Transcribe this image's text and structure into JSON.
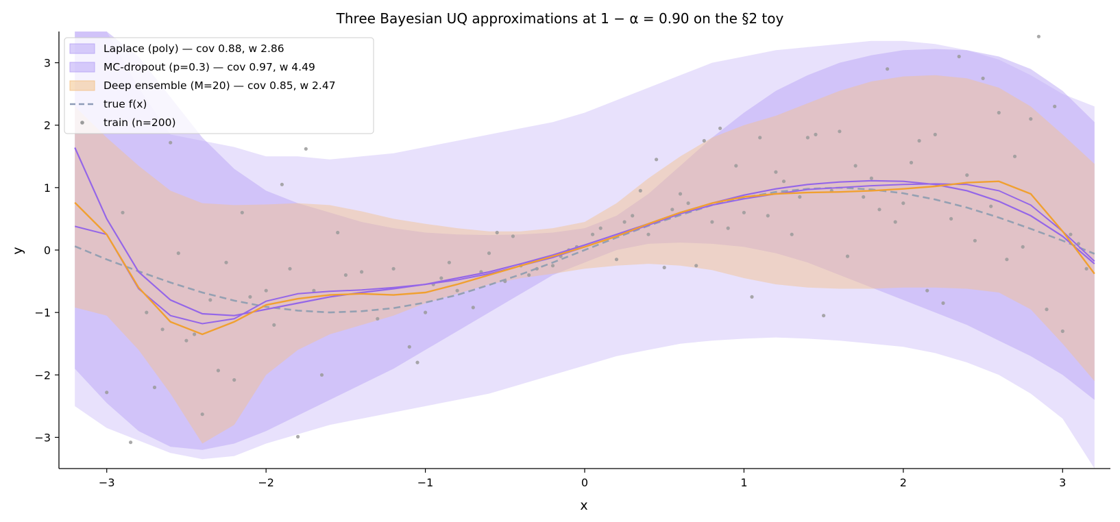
{
  "chart_data": {
    "type": "line",
    "title": "Three Bayesian UQ approximations at 1 − α = 0.90 on the §2 toy",
    "xlabel": "x",
    "ylabel": "y",
    "xlim": [
      -3.3,
      3.3
    ],
    "ylim": [
      -3.5,
      3.5
    ],
    "xticks": [
      -3,
      -2,
      -1,
      0,
      1,
      2,
      3
    ],
    "yticks": [
      -3,
      -2,
      -1,
      0,
      1,
      2,
      3
    ],
    "xtick_labels": [
      "−3",
      "−2",
      "−1",
      "0",
      "1",
      "2",
      "3"
    ],
    "ytick_labels": [
      "−3",
      "−2",
      "−1",
      "0",
      "1",
      "2",
      "3"
    ],
    "grid": false,
    "legend_position": "top-left",
    "legend": [
      {
        "label": "Laplace (poly) — cov 0.88, w 2.86",
        "kind": "band",
        "color": "#b9a5f5"
      },
      {
        "label": "MC-dropout (p=0.3) — cov 0.97, w 4.49",
        "kind": "band",
        "color": "#b9a5f5"
      },
      {
        "label": "Deep ensemble (M=20) — cov 0.85, w 2.47",
        "kind": "band",
        "color": "#f3c28a"
      },
      {
        "label": "true f(x)",
        "kind": "dashed-line",
        "color": "#8e9cb8"
      },
      {
        "label": "train (n=200)",
        "kind": "marker",
        "color": "#9a9a9a"
      }
    ],
    "x": [
      -3.2,
      -3.0,
      -2.8,
      -2.6,
      -2.4,
      -2.2,
      -2.0,
      -1.8,
      -1.6,
      -1.4,
      -1.2,
      -1.0,
      -0.8,
      -0.6,
      -0.4,
      -0.2,
      0.0,
      0.2,
      0.4,
      0.6,
      0.8,
      1.0,
      1.2,
      1.4,
      1.6,
      1.8,
      2.0,
      2.2,
      2.4,
      2.6,
      2.8,
      3.0,
      3.2
    ],
    "series": [
      {
        "name": "true f(x)",
        "color": "#94a0b2",
        "style": "dashed",
        "values": [
          0.06,
          -0.15,
          -0.34,
          -0.52,
          -0.68,
          -0.81,
          -0.91,
          -0.97,
          -1.0,
          -0.98,
          -0.93,
          -0.84,
          -0.72,
          -0.56,
          -0.39,
          -0.2,
          0.0,
          0.2,
          0.39,
          0.56,
          0.72,
          0.84,
          0.93,
          0.98,
          1.0,
          0.97,
          0.91,
          0.81,
          0.68,
          0.52,
          0.34,
          0.15,
          -0.06
        ]
      },
      {
        "name": "Laplace (poly) mean",
        "color": "#9466e8",
        "style": "solid",
        "values": [
          1.64,
          0.5,
          -0.35,
          -0.8,
          -1.02,
          -1.05,
          -0.95,
          -0.85,
          -0.75,
          -0.68,
          -0.62,
          -0.55,
          -0.45,
          -0.35,
          -0.22,
          -0.08,
          0.08,
          0.25,
          0.42,
          0.6,
          0.75,
          0.88,
          0.98,
          1.05,
          1.09,
          1.11,
          1.1,
          1.05,
          0.95,
          0.78,
          0.55,
          0.22,
          -0.22
        ]
      },
      {
        "name": "Laplace (poly) lower",
        "color": "#b9a5f5",
        "style": "band-edge",
        "values": [
          -1.9,
          -2.45,
          -2.9,
          -3.15,
          -3.2,
          -3.1,
          -2.9,
          -2.65,
          -2.4,
          -2.15,
          -1.9,
          -1.6,
          -1.3,
          -1.0,
          -0.7,
          -0.4,
          -0.2,
          0.0,
          0.1,
          0.12,
          0.1,
          0.05,
          -0.05,
          -0.2,
          -0.4,
          -0.6,
          -0.8,
          -1.0,
          -1.2,
          -1.45,
          -1.7,
          -2.0,
          -2.4
        ]
      },
      {
        "name": "Laplace (poly) upper",
        "color": "#b9a5f5",
        "style": "band-edge",
        "values": [
          3.5,
          3.5,
          3.1,
          2.45,
          1.8,
          1.3,
          0.95,
          0.75,
          0.6,
          0.45,
          0.35,
          0.28,
          0.25,
          0.24,
          0.25,
          0.28,
          0.35,
          0.55,
          0.9,
          1.35,
          1.8,
          2.2,
          2.55,
          2.8,
          3.0,
          3.12,
          3.2,
          3.22,
          3.2,
          3.1,
          2.9,
          2.55,
          2.05
        ]
      },
      {
        "name": "MC-dropout mean",
        "color": "#9466e8",
        "style": "solid",
        "values": [
          0.38,
          0.25,
          -0.62,
          -1.05,
          -1.18,
          -1.1,
          -0.82,
          -0.7,
          -0.66,
          -0.64,
          -0.6,
          -0.55,
          -0.48,
          -0.38,
          -0.25,
          -0.12,
          0.05,
          0.22,
          0.4,
          0.58,
          0.72,
          0.82,
          0.9,
          0.97,
          1.0,
          1.03,
          1.05,
          1.06,
          1.05,
          0.95,
          0.72,
          0.3,
          -0.18
        ]
      },
      {
        "name": "MC-dropout lower",
        "color": "#d6c9fa",
        "style": "band-edge",
        "values": [
          -2.5,
          -2.85,
          -3.05,
          -3.25,
          -3.35,
          -3.3,
          -3.1,
          -2.95,
          -2.8,
          -2.7,
          -2.6,
          -2.5,
          -2.4,
          -2.3,
          -2.15,
          -2.0,
          -1.85,
          -1.7,
          -1.6,
          -1.5,
          -1.45,
          -1.42,
          -1.4,
          -1.42,
          -1.45,
          -1.5,
          -1.55,
          -1.65,
          -1.8,
          -2.0,
          -2.3,
          -2.7,
          -3.5
        ]
      },
      {
        "name": "MC-dropout upper",
        "color": "#d6c9fa",
        "style": "band-edge",
        "values": [
          3.5,
          3.5,
          2.6,
          1.85,
          1.75,
          1.65,
          1.5,
          1.5,
          1.45,
          1.5,
          1.55,
          1.65,
          1.75,
          1.85,
          1.95,
          2.05,
          2.2,
          2.4,
          2.6,
          2.8,
          3.0,
          3.1,
          3.2,
          3.25,
          3.3,
          3.35,
          3.35,
          3.3,
          3.2,
          3.05,
          2.8,
          2.5,
          2.3
        ]
      },
      {
        "name": "Deep ensemble mean",
        "color": "#f0a030",
        "style": "solid",
        "values": [
          0.76,
          0.25,
          -0.6,
          -1.15,
          -1.35,
          -1.15,
          -0.88,
          -0.78,
          -0.72,
          -0.7,
          -0.72,
          -0.68,
          -0.55,
          -0.4,
          -0.25,
          -0.1,
          0.05,
          0.22,
          0.42,
          0.6,
          0.75,
          0.85,
          0.9,
          0.92,
          0.93,
          0.95,
          0.98,
          1.02,
          1.08,
          1.1,
          0.9,
          0.3,
          -0.38
        ]
      },
      {
        "name": "Deep ensemble lower",
        "color": "#f3c28a",
        "style": "band-edge",
        "values": [
          -0.92,
          -1.05,
          -1.6,
          -2.3,
          -3.1,
          -2.8,
          -2.0,
          -1.6,
          -1.35,
          -1.2,
          -1.05,
          -0.85,
          -0.7,
          -0.55,
          -0.45,
          -0.38,
          -0.3,
          -0.25,
          -0.22,
          -0.25,
          -0.32,
          -0.45,
          -0.55,
          -0.6,
          -0.62,
          -0.62,
          -0.6,
          -0.6,
          -0.62,
          -0.68,
          -0.95,
          -1.5,
          -2.1
        ]
      },
      {
        "name": "Deep ensemble upper",
        "color": "#f3c28a",
        "style": "band-edge",
        "values": [
          2.3,
          1.8,
          1.35,
          0.95,
          0.75,
          0.72,
          0.73,
          0.75,
          0.72,
          0.62,
          0.5,
          0.42,
          0.35,
          0.3,
          0.3,
          0.35,
          0.45,
          0.75,
          1.15,
          1.5,
          1.8,
          2.0,
          2.15,
          2.35,
          2.55,
          2.7,
          2.78,
          2.8,
          2.75,
          2.6,
          2.3,
          1.85,
          1.38
        ]
      }
    ],
    "points_series": {
      "name": "train (n=200)",
      "color": "#9a9a9a",
      "x": [
        -3.0,
        -2.9,
        -2.85,
        -2.75,
        -2.7,
        -2.65,
        -2.6,
        -2.55,
        -2.5,
        -2.45,
        -2.4,
        -2.35,
        -2.3,
        -2.25,
        -2.2,
        -2.15,
        -2.1,
        -2.0,
        -1.95,
        -1.9,
        -1.85,
        -1.8,
        -1.75,
        -1.7,
        -1.65,
        -1.55,
        -1.5,
        -1.4,
        -1.3,
        -1.2,
        -1.1,
        -1.05,
        -1.0,
        -0.95,
        -0.9,
        -0.85,
        -0.8,
        -0.7,
        -0.65,
        -0.6,
        -0.55,
        -0.5,
        -0.45,
        -0.4,
        -0.35,
        -0.3,
        -0.2,
        -0.15,
        -0.1,
        -0.05,
        0.05,
        0.1,
        0.2,
        0.25,
        0.3,
        0.35,
        0.4,
        0.45,
        0.5,
        0.55,
        0.6,
        0.65,
        0.7,
        0.75,
        0.8,
        0.85,
        0.9,
        0.95,
        1.0,
        1.05,
        1.1,
        1.15,
        1.2,
        1.25,
        1.3,
        1.35,
        1.4,
        1.45,
        1.5,
        1.55,
        1.6,
        1.65,
        1.7,
        1.75,
        1.8,
        1.85,
        1.9,
        1.95,
        2.0,
        2.05,
        2.1,
        2.15,
        2.2,
        2.25,
        2.3,
        2.35,
        2.4,
        2.45,
        2.5,
        2.55,
        2.6,
        2.65,
        2.7,
        2.75,
        2.8,
        2.85,
        2.9,
        2.95,
        3.0,
        3.05,
        3.1,
        3.15
      ],
      "values": [
        -2.28,
        0.6,
        -3.08,
        -1.0,
        -2.2,
        -1.27,
        1.72,
        -0.05,
        -1.45,
        -1.35,
        -2.63,
        -0.8,
        -1.93,
        -0.2,
        -2.08,
        0.6,
        -0.75,
        -0.65,
        -1.2,
        1.05,
        -0.3,
        -2.99,
        1.62,
        -0.65,
        -2.0,
        0.28,
        -0.4,
        -0.35,
        -1.1,
        -0.3,
        -1.55,
        -1.8,
        -1.0,
        -0.55,
        -0.45,
        -0.2,
        -0.65,
        -0.92,
        -0.35,
        -0.05,
        0.28,
        -0.5,
        0.22,
        -0.25,
        -0.4,
        -0.3,
        -0.25,
        -0.1,
        0.0,
        0.05,
        0.25,
        0.35,
        -0.15,
        0.45,
        0.55,
        0.95,
        0.25,
        1.45,
        -0.28,
        0.65,
        0.9,
        0.75,
        -0.25,
        1.75,
        0.45,
        1.95,
        0.35,
        1.35,
        0.6,
        -0.75,
        1.8,
        0.55,
        1.25,
        1.1,
        0.25,
        0.85,
        1.8,
        1.85,
        -1.05,
        0.95,
        1.9,
        -0.1,
        1.35,
        0.85,
        1.15,
        0.65,
        2.9,
        0.45,
        0.75,
        1.4,
        1.75,
        -0.65,
        1.85,
        -0.85,
        0.5,
        3.1,
        1.2,
        0.15,
        2.75,
        0.7,
        2.2,
        -0.15,
        1.5,
        0.05,
        2.1,
        3.42,
        -0.95,
        2.3,
        -1.3,
        0.25,
        0.1,
        -0.3
      ]
    }
  }
}
